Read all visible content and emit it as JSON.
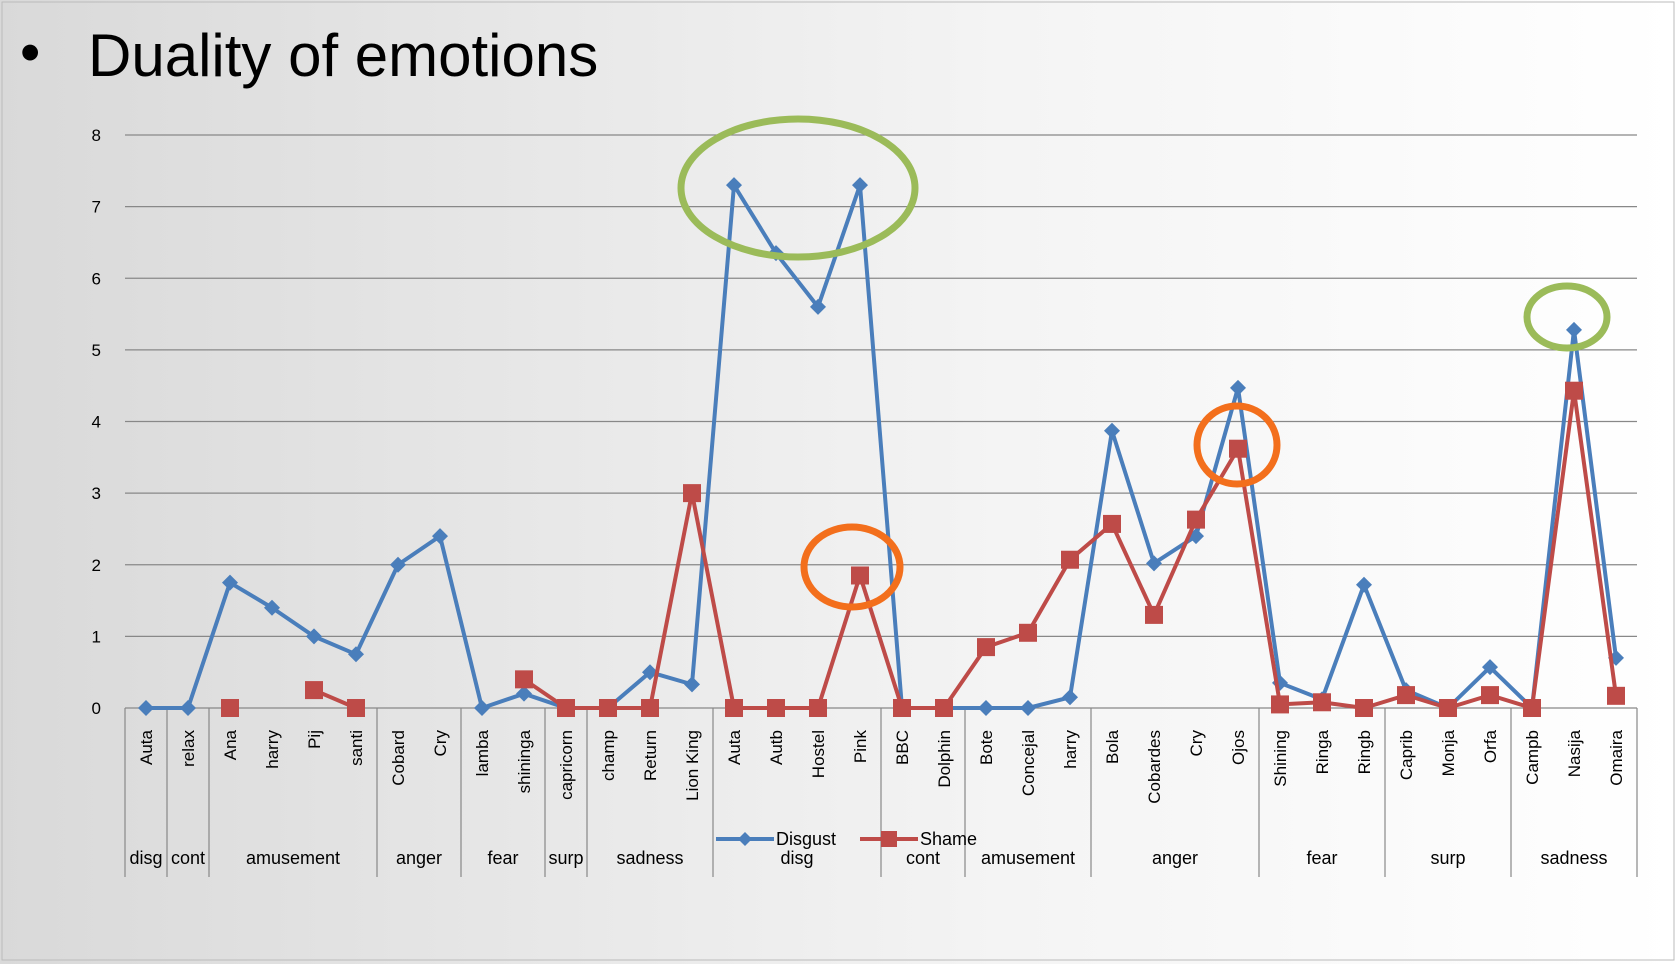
{
  "chart_data": {
    "type": "line",
    "title": "Duality of emotions",
    "categories": [
      "Auta",
      "relax",
      "Ana",
      "harry",
      "Pij",
      "santi",
      "Cobard",
      "Cry",
      "lamba",
      "shininga",
      "capricorn",
      "champ",
      "Return",
      "Lion King",
      "Auta",
      "Autb",
      "Hostel",
      "Pink",
      "BBC",
      "Dolphin",
      "Bote",
      "Concejal",
      "harry",
      "Bola",
      "Cobardes",
      "Cry",
      "Ojos",
      "Shining",
      "Ringa",
      "Ringb",
      "Caprib",
      "Monja",
      "Orfa",
      "Campb",
      "Nasija",
      "Omaira"
    ],
    "groups": [
      {
        "label": "disg",
        "start": 0,
        "end": 0
      },
      {
        "label": "cont",
        "start": 1,
        "end": 1
      },
      {
        "label": "amusement",
        "start": 2,
        "end": 5
      },
      {
        "label": "anger",
        "start": 6,
        "end": 7
      },
      {
        "label": "fear",
        "start": 8,
        "end": 9
      },
      {
        "label": "surp",
        "start": 10,
        "end": 10
      },
      {
        "label": "sadness",
        "start": 11,
        "end": 13
      },
      {
        "label": "disg",
        "start": 14,
        "end": 17
      },
      {
        "label": "cont",
        "start": 18,
        "end": 19
      },
      {
        "label": "amusement",
        "start": 20,
        "end": 22
      },
      {
        "label": "anger",
        "start": 23,
        "end": 26
      },
      {
        "label": "fear",
        "start": 27,
        "end": 29
      },
      {
        "label": "surp",
        "start": 30,
        "end": 32
      },
      {
        "label": "sadness",
        "start": 33,
        "end": 35
      }
    ],
    "series": [
      {
        "name": "Disgust",
        "color": "#4a7ebb",
        "marker": "diamond",
        "values": [
          0,
          0,
          1.75,
          1.4,
          1.0,
          0.75,
          2.0,
          2.4,
          0,
          0.2,
          0,
          0,
          0.5,
          0.33,
          7.3,
          6.35,
          5.6,
          7.3,
          0,
          0,
          0,
          0,
          0.15,
          3.87,
          2.02,
          2.4,
          4.47,
          0.35,
          0.12,
          1.72,
          0.25,
          0,
          0.57,
          0,
          5.28,
          0.7
        ]
      },
      {
        "name": "Shame",
        "color": "#be4b48",
        "marker": "square",
        "values": [
          null,
          null,
          0,
          null,
          0.25,
          0,
          null,
          null,
          null,
          0.4,
          0,
          0,
          0,
          3.0,
          0,
          0,
          0,
          1.85,
          0,
          0,
          0.85,
          1.05,
          2.07,
          2.57,
          1.3,
          2.63,
          3.62,
          0.05,
          0.08,
          0,
          0.18,
          0,
          0.18,
          0,
          4.43,
          0.17
        ]
      }
    ],
    "ylim": [
      0,
      8
    ],
    "yticks": [
      0,
      1,
      2,
      3,
      4,
      5,
      6,
      7,
      8
    ],
    "grid": true,
    "legend": "bottom"
  }
}
